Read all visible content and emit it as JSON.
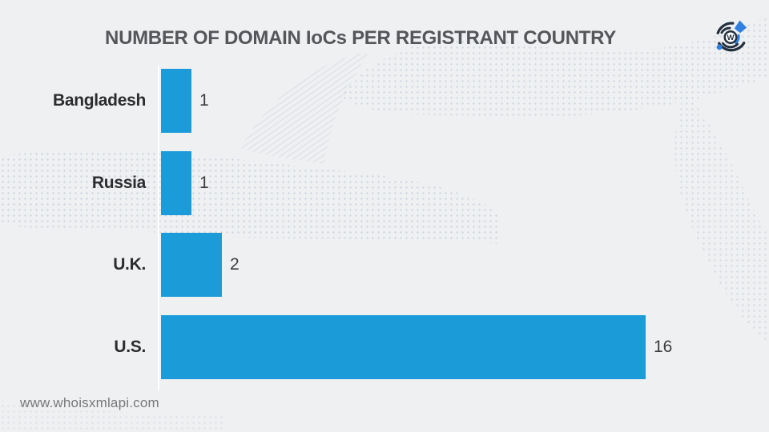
{
  "page": {
    "footer_url": "www.whoisxmlapi.com",
    "logo_letter": "W"
  },
  "colors": {
    "background": "#eff0f1",
    "bar": "#1b9cd8",
    "title_text": "#55565a",
    "category_label_text": "#2b2c2e",
    "value_label_text": "#3c3d3f",
    "footer_text": "#77787a",
    "axis_line": "#ffffff",
    "pattern_dot": "#b7c1d5",
    "logo_dark": "#22303f",
    "logo_blue": "#2f80e0"
  },
  "chart_data": {
    "type": "bar",
    "orientation": "horizontal",
    "title": "NUMBER OF DOMAIN IoCs PER REGISTRANT COUNTRY",
    "categories": [
      "Bangladesh",
      "Russia",
      "U.K.",
      "U.S."
    ],
    "values": [
      1,
      1,
      2,
      16
    ],
    "xlim": [
      0,
      16
    ],
    "xlabel": "",
    "ylabel": "",
    "grid": false,
    "legend": false,
    "value_labels_shown": true
  }
}
